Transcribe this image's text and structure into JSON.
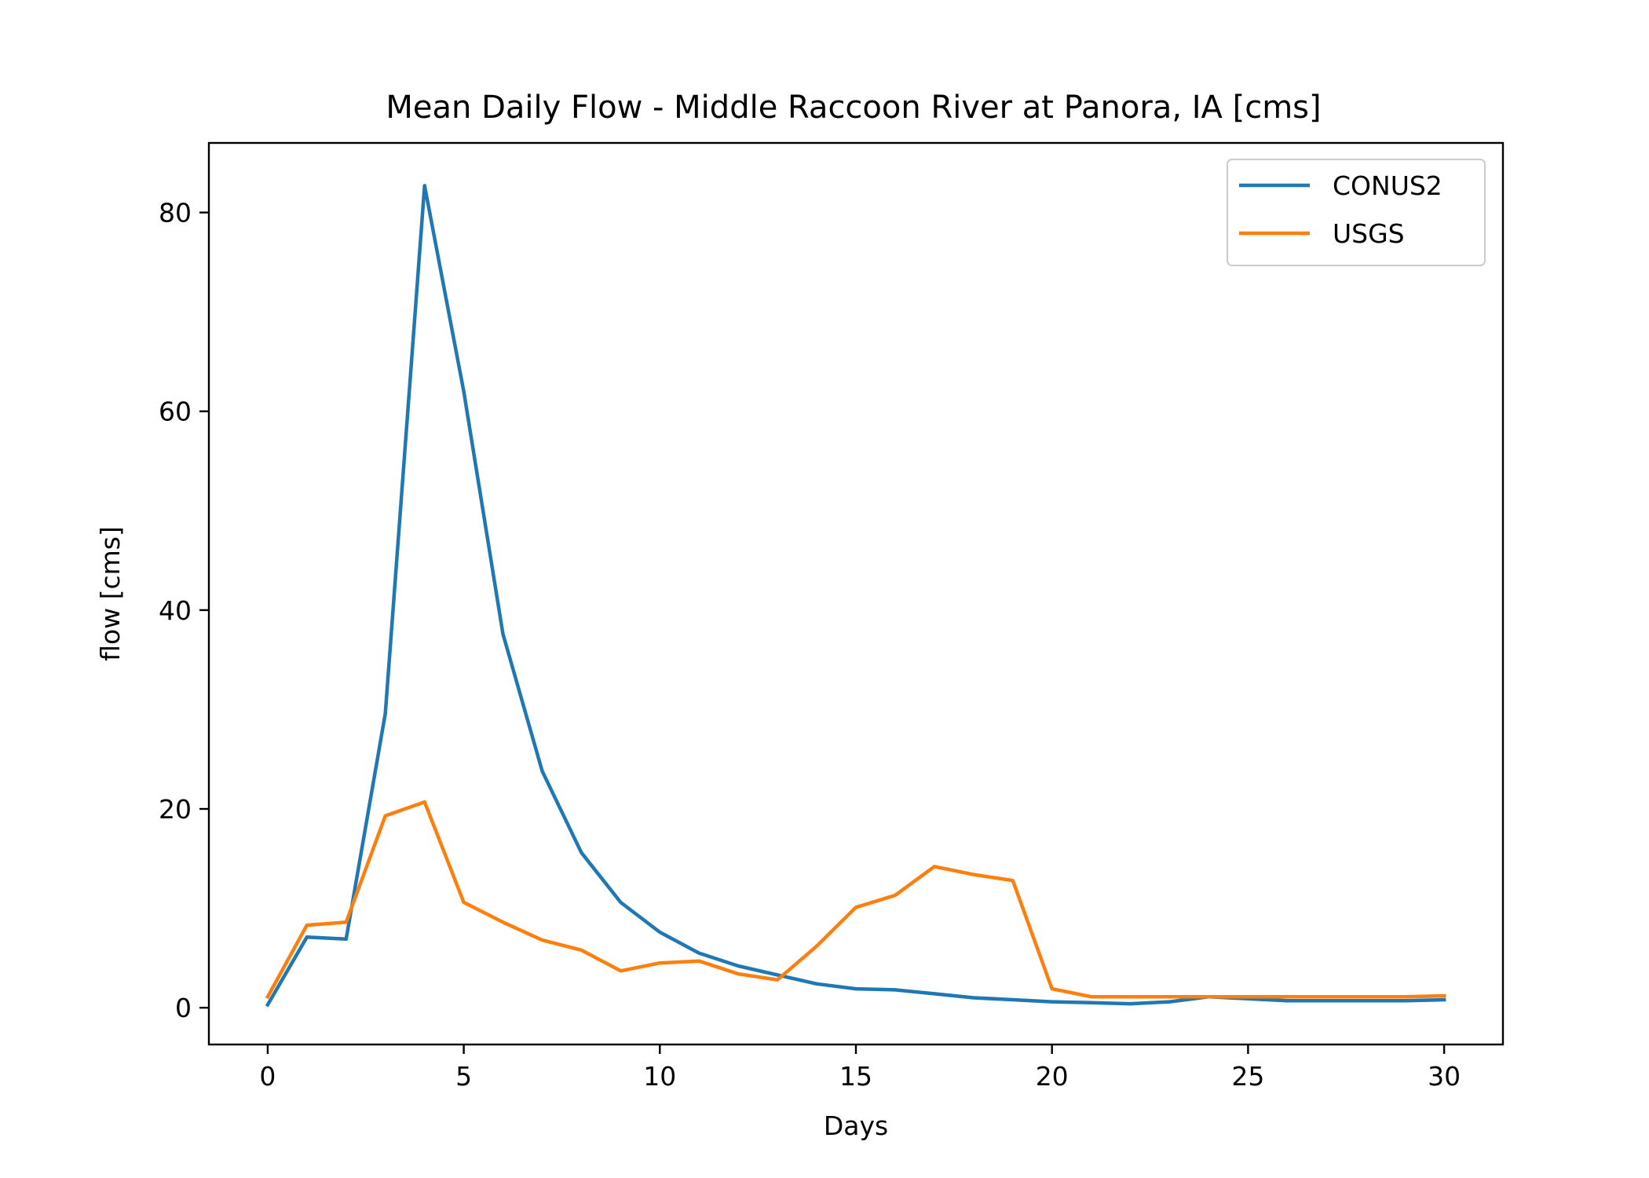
{
  "chart_data": {
    "type": "line",
    "title": "Mean Daily Flow - Middle Raccoon River at Panora, IA [cms]",
    "xlabel": "Days",
    "ylabel": "flow [cms]",
    "xlim": [
      -1.5,
      31.5
    ],
    "ylim": [
      -3.7,
      87.0
    ],
    "xticks": [
      0,
      5,
      10,
      15,
      20,
      25,
      30
    ],
    "yticks": [
      0,
      20,
      40,
      60,
      80
    ],
    "grid": false,
    "legend_position": "top-right",
    "x": [
      0,
      1,
      2,
      3,
      4,
      5,
      6,
      7,
      8,
      9,
      10,
      11,
      12,
      13,
      14,
      15,
      16,
      17,
      18,
      19,
      20,
      21,
      22,
      23,
      24,
      25,
      26,
      27,
      28,
      29,
      30
    ],
    "series": [
      {
        "name": "CONUS2",
        "color": "#1f77b4",
        "values": [
          0.3,
          7.1,
          6.9,
          29.6,
          82.7,
          62.0,
          37.6,
          23.8,
          15.6,
          10.6,
          7.6,
          5.5,
          4.2,
          3.3,
          2.4,
          1.9,
          1.8,
          1.4,
          1.0,
          0.8,
          0.6,
          0.5,
          0.4,
          0.6,
          1.1,
          0.9,
          0.7,
          0.7,
          0.7,
          0.7,
          0.8
        ]
      },
      {
        "name": "USGS",
        "color": "#ff7f0e",
        "values": [
          1.1,
          8.3,
          8.6,
          19.3,
          20.7,
          10.6,
          8.6,
          6.8,
          5.8,
          3.7,
          4.5,
          4.7,
          3.4,
          2.8,
          6.2,
          10.1,
          11.3,
          14.2,
          13.4,
          12.8,
          1.9,
          1.1,
          1.1,
          1.1,
          1.1,
          1.1,
          1.1,
          1.1,
          1.1,
          1.1,
          1.2
        ]
      }
    ]
  }
}
